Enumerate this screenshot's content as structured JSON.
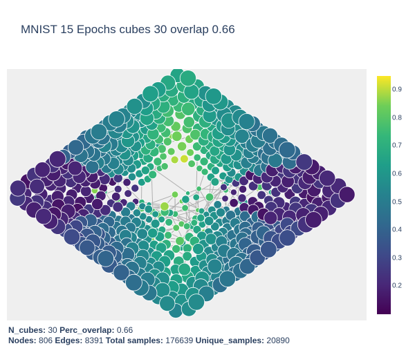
{
  "chart_data": {
    "type": "scatter",
    "title": "MNIST 15 Epochs cubes 30 overlap 0.66",
    "subtitle_lines": [
      [
        {
          "label": "N_cubes:",
          "value": "30"
        },
        {
          "label": "Perc_overlap:",
          "value": "0.66"
        }
      ],
      [
        {
          "label": "Nodes:",
          "value": "806"
        },
        {
          "label": "Edges:",
          "value": "8391"
        },
        {
          "label": "Total samples:",
          "value": "176639"
        },
        {
          "label": "Unique_samples:",
          "value": "20890"
        }
      ]
    ],
    "colorscale": "viridis",
    "colorbar": {
      "range": [
        0.1,
        0.95
      ],
      "ticks": [
        "0.2",
        "0.3",
        "0.4",
        "0.5",
        "0.6",
        "0.7",
        "0.8",
        "0.9"
      ]
    },
    "n_cubes": 30,
    "perc_overlap": 0.66,
    "nodes": 806,
    "edges": 8391,
    "edge_color": "#b0b0b0",
    "node_outline_color": "#ffffff",
    "background": "#efefef"
  }
}
